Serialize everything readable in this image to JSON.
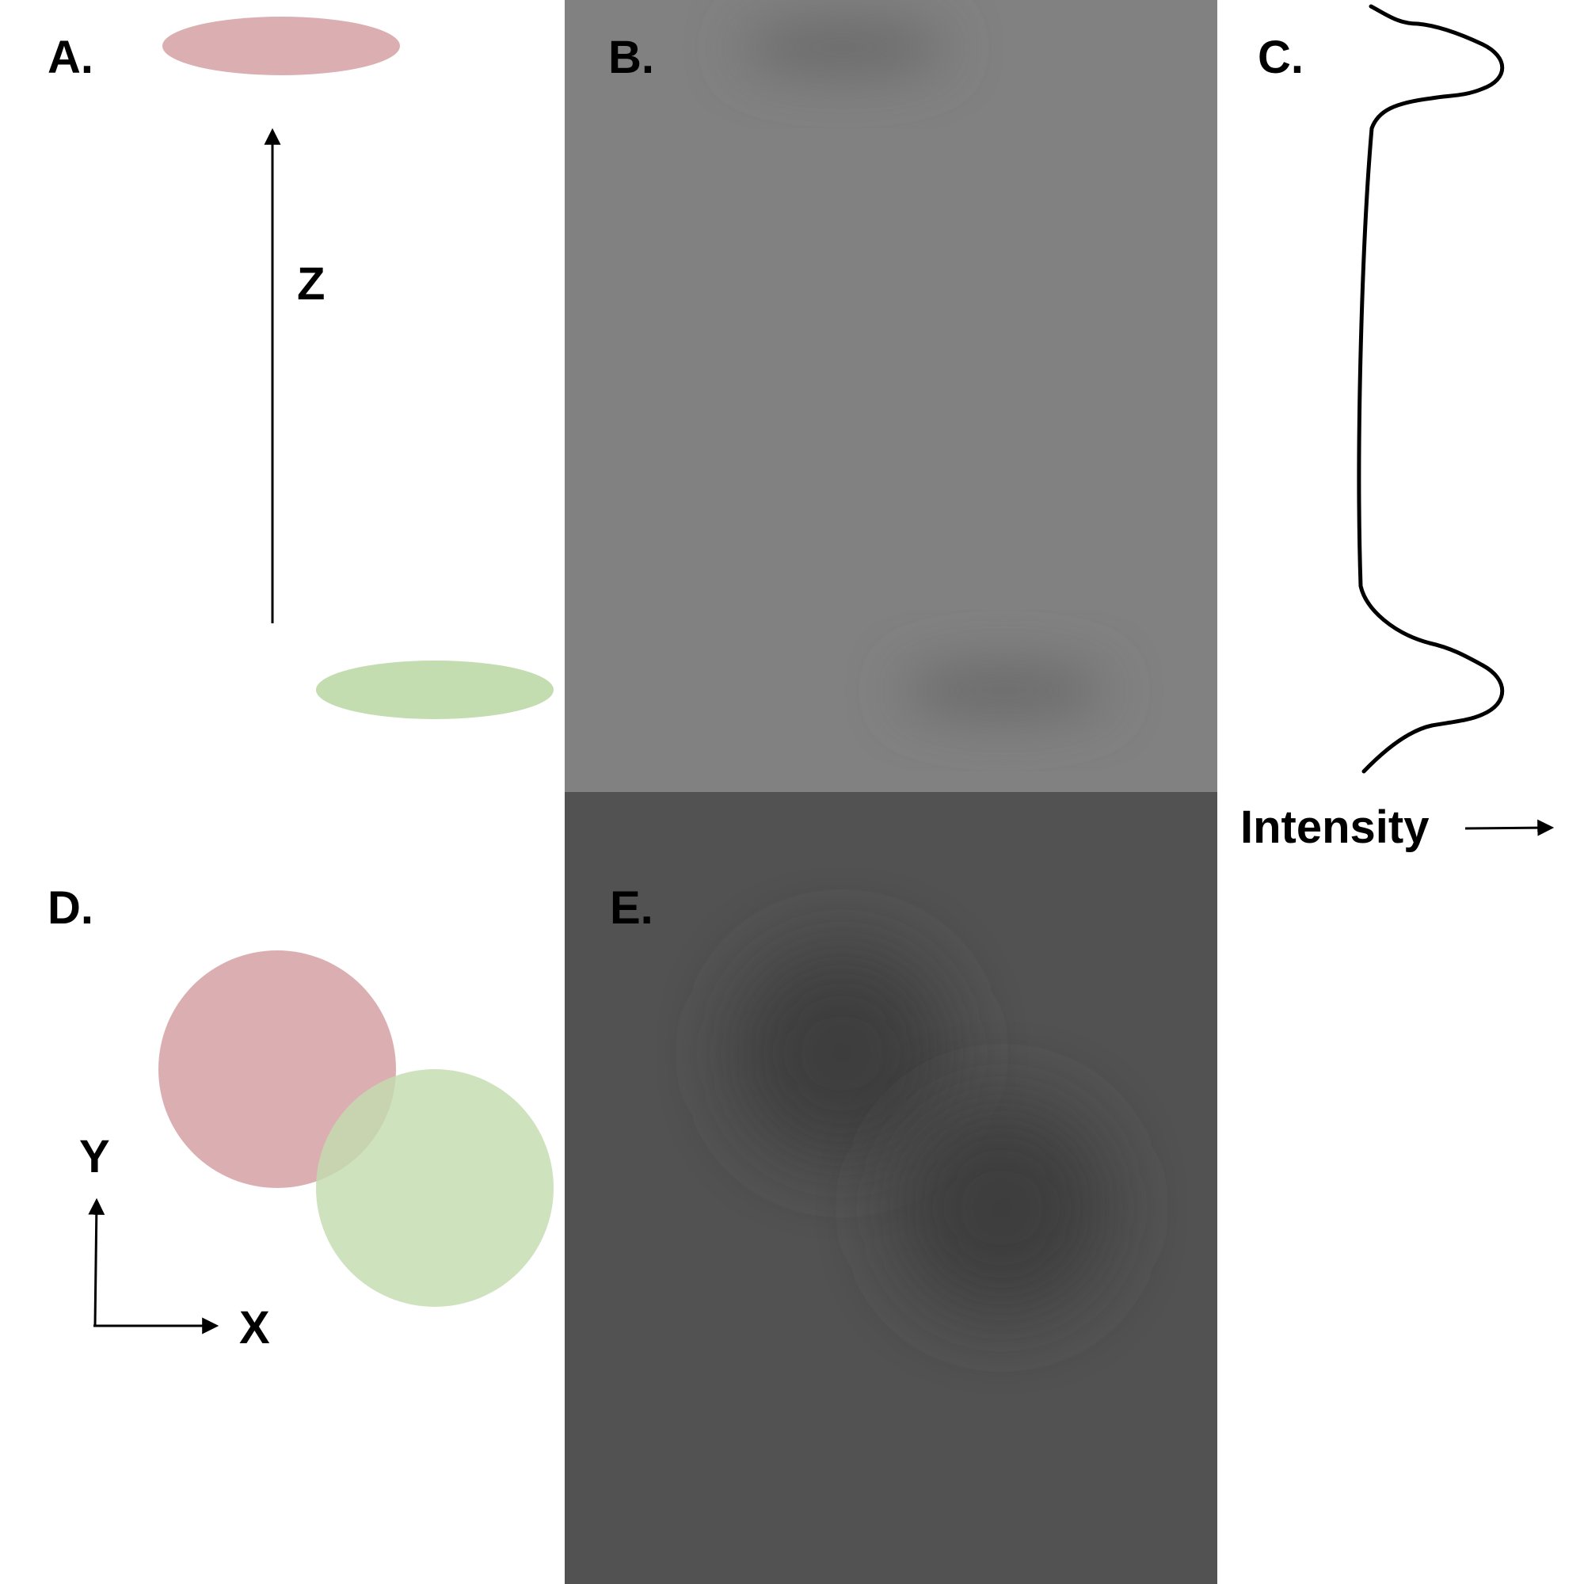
{
  "panels": {
    "a": {
      "label": "A.",
      "axis_label": "Z"
    },
    "b": {
      "label": "B."
    },
    "c": {
      "label": "C.",
      "axis_label": "Intensity"
    },
    "d": {
      "label": "D.",
      "x_label": "X",
      "y_label": "Y"
    },
    "e": {
      "label": "E."
    }
  },
  "colors": {
    "object_1": "#dbafb1",
    "object_2": "#c3dcb0",
    "panel_b_background": "#818181",
    "panel_b_blur": "#696969",
    "panel_e_background": "#525252",
    "panel_e_blur": "#3c3c3c"
  }
}
